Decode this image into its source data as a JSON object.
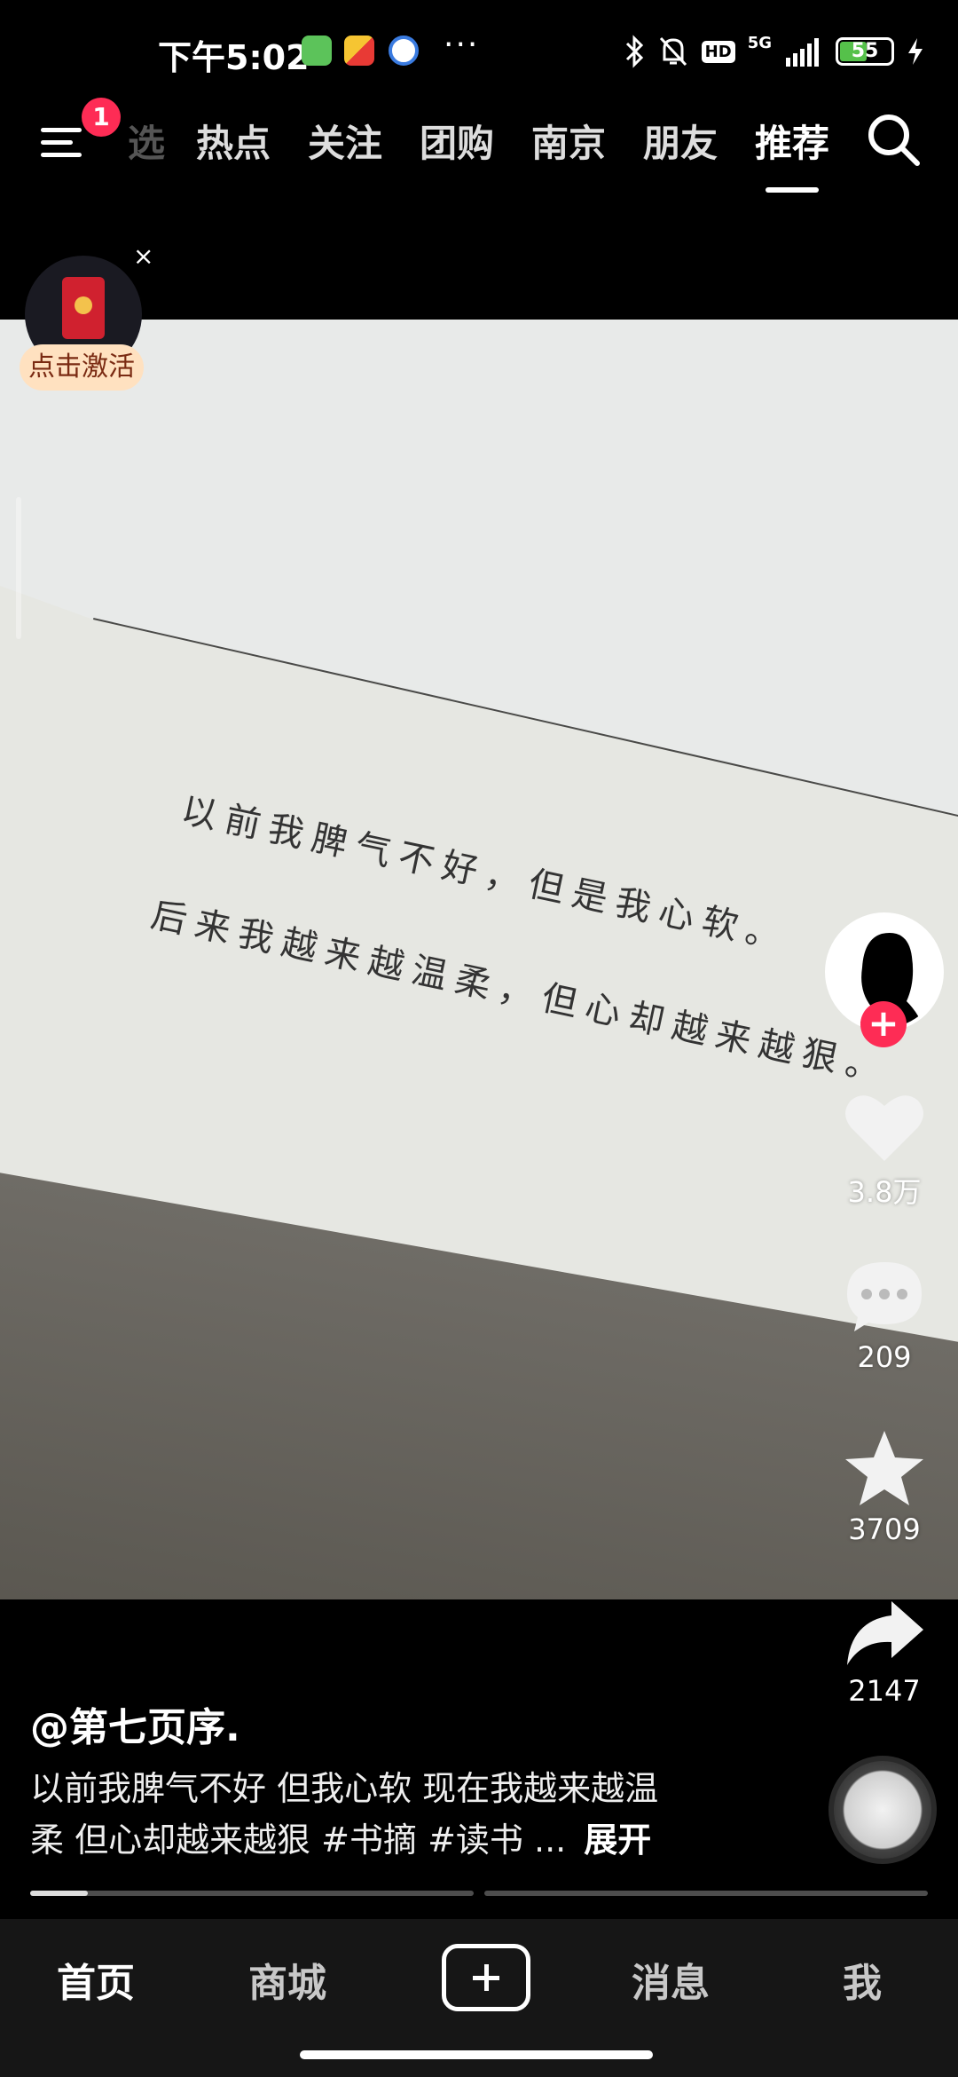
{
  "status_bar": {
    "time": "下午5:02",
    "more": "···",
    "network": "5G",
    "hd": "HD",
    "battery": "55",
    "battery_level": 0.55
  },
  "top_nav": {
    "notification_count": "1",
    "tabs": [
      {
        "label": "选",
        "partial": true
      },
      {
        "label": "热点"
      },
      {
        "label": "关注"
      },
      {
        "label": "团购"
      },
      {
        "label": "南京"
      },
      {
        "label": "朋友"
      },
      {
        "label": "推荐",
        "active": true
      }
    ]
  },
  "red_packet": {
    "close": "×",
    "label": "点击激活"
  },
  "video": {
    "book_lines": [
      "以前我脾气不好，但是我心软。",
      "后来我越来越温柔，但心却越来越狠。"
    ]
  },
  "rail": {
    "follow": "+",
    "likes": "3.8万",
    "comments": "209",
    "favorites": "3709",
    "shares": "2147"
  },
  "caption": {
    "author": "@第七页序.",
    "line1": "以前我脾气不好 但我心软 现在我越来越温",
    "line2": "柔 但心却越来越狠 #书摘 #读书 ...",
    "expand": "展开"
  },
  "progress": {
    "segment1_fraction": 0.13,
    "segment2_fraction": 0.0
  },
  "bottom_nav": {
    "home": "首页",
    "mall": "商城",
    "messages": "消息",
    "me": "我"
  }
}
